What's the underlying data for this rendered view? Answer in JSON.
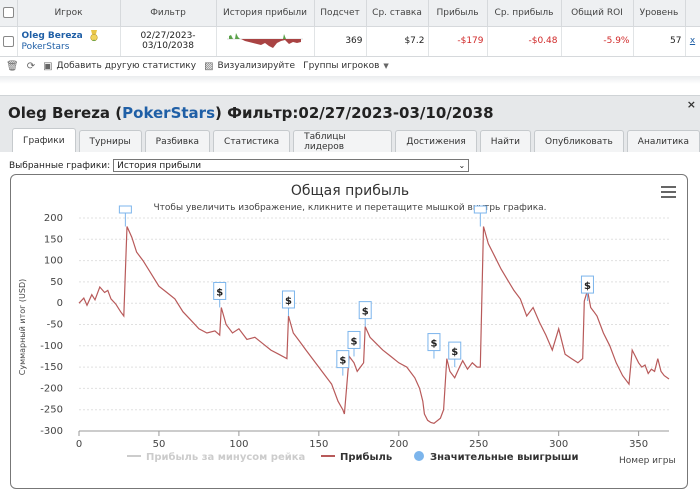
{
  "table": {
    "headers": [
      "Игрок",
      "Фильтр",
      "История прибыли",
      "Подсчет",
      "Ср. ставка",
      "Прибыль",
      "Ср. прибыль",
      "Общий ROI",
      "Уровень"
    ],
    "row": {
      "player_name": "Oleg Bereza",
      "player_site": "PokerStars",
      "filter_line1": "02/27/2023-",
      "filter_line2": "03/10/2038",
      "count": "369",
      "avg_stake": "$7.2",
      "profit": "-$179",
      "avg_profit": "-$0.48",
      "roi": "-5.9%",
      "level": "57",
      "remove": "x"
    }
  },
  "toolbar": {
    "add_stats": "Добавить другую статистику",
    "visualize": "Визуализируйте",
    "player_groups": "Группы игроков"
  },
  "panel": {
    "title_name": "Oleg Bereza (",
    "title_site": "PokerStars",
    "title_filter": ") Фильтр:02/27/2023-03/10/2038",
    "close": "×",
    "tabs": [
      "Графики",
      "Турниры",
      "Разбивка",
      "Статистика",
      "Таблицы лидеров",
      "Достижения",
      "Найти",
      "Опубликовать",
      "Аналитика"
    ],
    "selected_label": "Выбранные графики:",
    "selected_value": "История прибыли"
  },
  "chart_data": {
    "type": "line",
    "title": "Общая прибыль",
    "subtitle": "Чтобы увеличить изображение, кликните и перетащите мышкой внутрь графика.",
    "ylabel": "Суммарный итог (USD)",
    "xlabel": "Номер игры",
    "xlim": [
      0,
      369
    ],
    "ylim": [
      -300,
      200
    ],
    "xticks": [
      0,
      50,
      100,
      150,
      200,
      250,
      300,
      350
    ],
    "yticks": [
      200,
      150,
      100,
      50,
      0,
      -50,
      -100,
      -150,
      -200,
      -250,
      -300
    ],
    "legend": [
      "Прибыль за минусом рейка",
      "Прибыль",
      "Значительные выигрыши"
    ],
    "legend_position": "bottom",
    "grid": true,
    "marker_label": "$",
    "colors": {
      "profit": "#b85a5a",
      "rake": "#cccccc",
      "big_wins": "#7cb5ec"
    },
    "series": [
      {
        "name": "Прибыль",
        "x": [
          0,
          3,
          5,
          8,
          10,
          13,
          16,
          18,
          20,
          23,
          26,
          28,
          30,
          33,
          36,
          40,
          45,
          50,
          55,
          60,
          65,
          70,
          75,
          80,
          85,
          88,
          89,
          92,
          96,
          100,
          105,
          110,
          115,
          120,
          125,
          130,
          131,
          134,
          138,
          142,
          146,
          150,
          154,
          158,
          162,
          165,
          166,
          168,
          169,
          172,
          174,
          176,
          178,
          179,
          182,
          186,
          190,
          195,
          200,
          205,
          210,
          213,
          215,
          216,
          218,
          220,
          222,
          226,
          228,
          230,
          232,
          235,
          238,
          240,
          243,
          246,
          249,
          251,
          253,
          256,
          260,
          264,
          268,
          272,
          276,
          280,
          284,
          288,
          292,
          296,
          300,
          304,
          308,
          312,
          315,
          316,
          318,
          320,
          322,
          324,
          328,
          332,
          336,
          340,
          344,
          346,
          348,
          350,
          352,
          354,
          356,
          358,
          360,
          362,
          364,
          366,
          369
        ],
        "y": [
          0,
          12,
          -5,
          20,
          8,
          38,
          25,
          30,
          10,
          -2,
          -20,
          -30,
          180,
          155,
          120,
          100,
          70,
          40,
          25,
          10,
          -20,
          -40,
          -60,
          -70,
          -65,
          -75,
          -10,
          -50,
          -70,
          -60,
          -85,
          -80,
          -95,
          -110,
          -120,
          -130,
          -30,
          -70,
          -90,
          -110,
          -130,
          -150,
          -170,
          -190,
          -230,
          -250,
          -260,
          -170,
          -125,
          -140,
          -160,
          -150,
          -140,
          -55,
          -80,
          -95,
          -110,
          -125,
          -140,
          -150,
          -175,
          -200,
          -230,
          -260,
          -275,
          -280,
          -282,
          -270,
          -250,
          -130,
          -160,
          -175,
          -150,
          -135,
          -155,
          -140,
          -150,
          -150,
          180,
          140,
          110,
          80,
          55,
          30,
          10,
          -30,
          -10,
          -45,
          -75,
          -110,
          -60,
          -120,
          -130,
          -140,
          -130,
          5,
          30,
          -10,
          -20,
          -30,
          -70,
          -100,
          -140,
          -170,
          -190,
          -110,
          -125,
          -140,
          -150,
          -145,
          -165,
          -155,
          -160,
          -130,
          -160,
          -170,
          -178
        ]
      }
    ],
    "big_wins": [
      {
        "x": 29,
        "y": 180
      },
      {
        "x": 88,
        "y": -10
      },
      {
        "x": 131,
        "y": -30
      },
      {
        "x": 165,
        "y": -170
      },
      {
        "x": 172,
        "y": -125
      },
      {
        "x": 179,
        "y": -55
      },
      {
        "x": 222,
        "y": -130
      },
      {
        "x": 235,
        "y": -150
      },
      {
        "x": 251,
        "y": 180
      },
      {
        "x": 318,
        "y": 5
      }
    ]
  }
}
